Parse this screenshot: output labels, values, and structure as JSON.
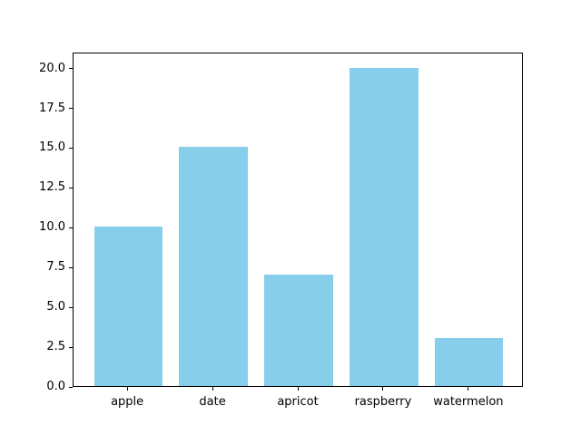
{
  "figure": {
    "background_color": "#ffffff",
    "title": ""
  },
  "chart_data": {
    "type": "bar",
    "categories": [
      "apple",
      "date",
      "apricot",
      "raspberry",
      "watermelon"
    ],
    "values": [
      10,
      15,
      7,
      20,
      3
    ],
    "title": "",
    "xlabel": "",
    "ylabel": "",
    "ylim": [
      0,
      21
    ],
    "yticks": [
      0.0,
      2.5,
      5.0,
      7.5,
      10.0,
      12.5,
      15.0,
      17.5,
      20.0
    ],
    "ytick_labels": [
      "0.0",
      "2.5",
      "5.0",
      "7.5",
      "10.0",
      "12.5",
      "15.0",
      "17.5",
      "20.0"
    ],
    "bar_color": "#87ceeb",
    "bar_width_fraction": 0.8,
    "axis_color": "#000000",
    "grid": false,
    "legend": null
  }
}
